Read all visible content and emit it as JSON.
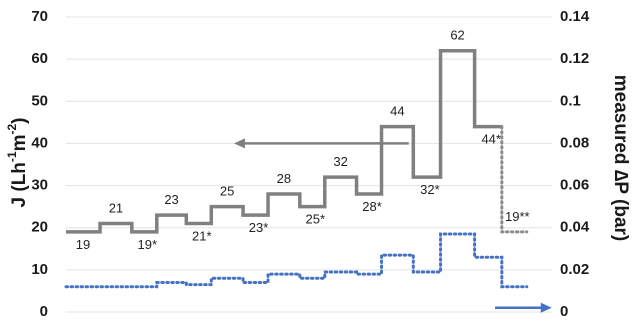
{
  "chart_data": {
    "type": "line",
    "title": "",
    "left_axis": {
      "label": "J (Lh⁻¹m⁻²)",
      "label_main": "J (Lh",
      "label_sup1": "-1",
      "label_mid": "m",
      "label_sup2": "-2",
      "label_end": ")",
      "ylim": [
        0,
        70
      ],
      "ticks": [
        "0",
        "10",
        "20",
        "30",
        "40",
        "50",
        "60",
        "70"
      ]
    },
    "right_axis": {
      "label": "measured ∆P (bar)",
      "ylim": [
        0,
        0.14
      ],
      "ticks": [
        "0",
        "0.02",
        "0.04",
        "0.06",
        "0.08",
        "0.1",
        "0.12",
        "0.14"
      ]
    },
    "grid": "horizontal",
    "x_range": [
      0,
      20
    ],
    "series": [
      {
        "axis": "left",
        "style": "step-solid-gray",
        "color": "#808080",
        "steps": [
          {
            "x0": 0,
            "x1": 1.5,
            "y": 19,
            "label": "19",
            "label_pos": "below"
          },
          {
            "x0": 1.5,
            "x1": 2.9,
            "y": 21,
            "label": "21",
            "label_pos": "above"
          },
          {
            "x0": 2.9,
            "x1": 4.0,
            "y": 19,
            "label": "19*",
            "label_pos": "below"
          },
          {
            "x0": 4.0,
            "x1": 5.3,
            "y": 23,
            "label": "23",
            "label_pos": "above"
          },
          {
            "x0": 5.3,
            "x1": 6.4,
            "y": 21,
            "label": "21*",
            "label_pos": "below"
          },
          {
            "x0": 6.4,
            "x1": 7.8,
            "y": 25,
            "label": "25",
            "label_pos": "above"
          },
          {
            "x0": 7.8,
            "x1": 8.9,
            "y": 23,
            "label": "23*",
            "label_pos": "below"
          },
          {
            "x0": 8.9,
            "x1": 10.3,
            "y": 28,
            "label": "28",
            "label_pos": "above"
          },
          {
            "x0": 10.3,
            "x1": 11.4,
            "y": 25,
            "label": "25*",
            "label_pos": "below"
          },
          {
            "x0": 11.4,
            "x1": 12.8,
            "y": 32,
            "label": "32",
            "label_pos": "above"
          },
          {
            "x0": 12.8,
            "x1": 13.9,
            "y": 28,
            "label": "28*",
            "label_pos": "below"
          },
          {
            "x0": 13.9,
            "x1": 15.3,
            "y": 44,
            "label": "44",
            "label_pos": "above"
          },
          {
            "x0": 15.3,
            "x1": 16.5,
            "y": 32,
            "label": "32*",
            "label_pos": "below"
          },
          {
            "x0": 16.5,
            "x1": 18.0,
            "y": 62,
            "label": "62",
            "label_pos": "above"
          },
          {
            "x0": 18.0,
            "x1": 19.2,
            "y": 44,
            "label": "44*",
            "label_pos": "below"
          }
        ]
      },
      {
        "axis": "left",
        "style": "step-dotted-gray",
        "color": "#8c8c8c",
        "steps": [
          {
            "x0": 19.2,
            "x1": 20.3,
            "y": 19,
            "label": "19**",
            "label_pos": "above"
          }
        ]
      },
      {
        "axis": "right",
        "style": "step-dotted-blue",
        "color": "#4472c4",
        "steps": [
          {
            "x0": 0,
            "x1": 1.5,
            "y": 0.012
          },
          {
            "x0": 1.5,
            "x1": 2.9,
            "y": 0.012
          },
          {
            "x0": 2.9,
            "x1": 4.0,
            "y": 0.012
          },
          {
            "x0": 4.0,
            "x1": 5.3,
            "y": 0.014
          },
          {
            "x0": 5.3,
            "x1": 6.4,
            "y": 0.013
          },
          {
            "x0": 6.4,
            "x1": 7.8,
            "y": 0.016
          },
          {
            "x0": 7.8,
            "x1": 8.9,
            "y": 0.014
          },
          {
            "x0": 8.9,
            "x1": 10.3,
            "y": 0.018
          },
          {
            "x0": 10.3,
            "x1": 11.4,
            "y": 0.016
          },
          {
            "x0": 11.4,
            "x1": 12.8,
            "y": 0.019
          },
          {
            "x0": 12.8,
            "x1": 13.9,
            "y": 0.018
          },
          {
            "x0": 13.9,
            "x1": 15.3,
            "y": 0.027
          },
          {
            "x0": 15.3,
            "x1": 16.5,
            "y": 0.019
          },
          {
            "x0": 16.5,
            "x1": 18.0,
            "y": 0.037
          },
          {
            "x0": 18.0,
            "x1": 19.2,
            "y": 0.026
          },
          {
            "x0": 19.2,
            "x1": 20.3,
            "y": 0.012
          }
        ]
      }
    ],
    "annotations": [
      {
        "type": "arrow",
        "direction": "left",
        "color": "#808080",
        "x0": 15.1,
        "x1": 7.4,
        "y": 40,
        "axis": "left"
      },
      {
        "type": "arrow",
        "direction": "right",
        "color": "#4472c4",
        "x0": 18.9,
        "x1": 21.4,
        "y": 0.002,
        "axis": "right"
      }
    ]
  }
}
